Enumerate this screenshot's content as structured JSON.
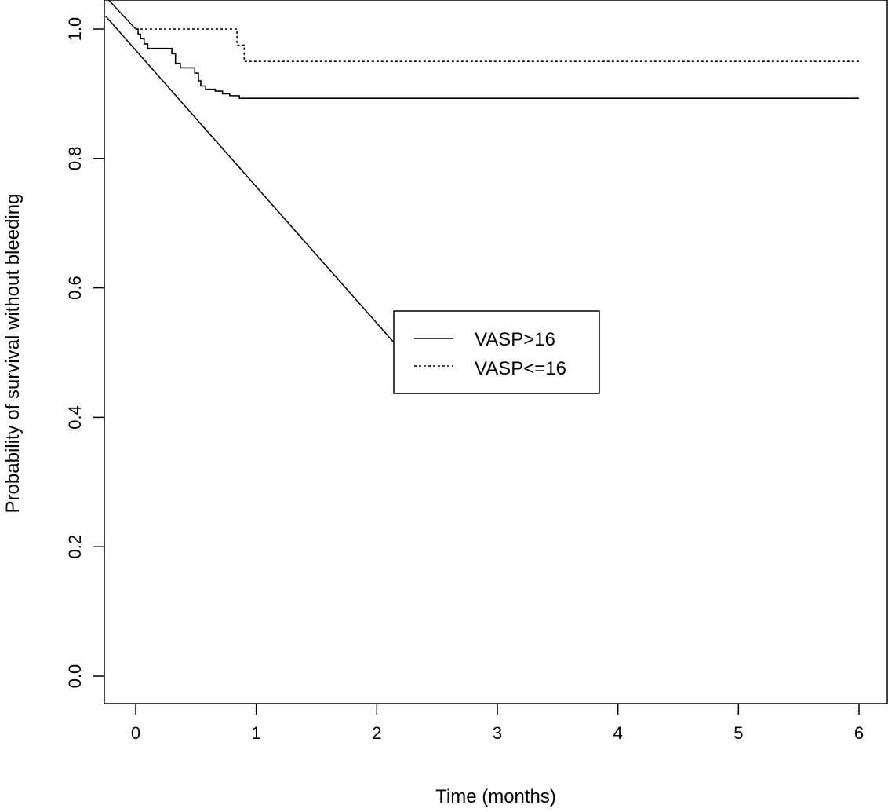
{
  "chart_data": {
    "type": "line",
    "title": "",
    "xlabel": "Time (months)",
    "ylabel": "Probability of survival without bleeding",
    "xlim": [
      -0.25,
      6.25
    ],
    "ylim": [
      -0.04,
      1.04
    ],
    "xticks": [
      "0",
      "1",
      "2",
      "3",
      "4",
      "5",
      "6"
    ],
    "yticks": [
      "0.0",
      "0.2",
      "0.4",
      "0.6",
      "0.8",
      "1.0"
    ],
    "grid": false,
    "legend_position": "center-right",
    "series": [
      {
        "name": "VASP>16",
        "line_style": "solid",
        "color": "#000000",
        "steps": [
          [
            0,
            1.0
          ],
          [
            0.02,
            0.992
          ],
          [
            0.04,
            0.985
          ],
          [
            0.07,
            0.977
          ],
          [
            0.1,
            0.97
          ],
          [
            0.3,
            0.962
          ],
          [
            0.33,
            0.947
          ],
          [
            0.37,
            0.94
          ],
          [
            0.49,
            0.932
          ],
          [
            0.52,
            0.92
          ],
          [
            0.54,
            0.912
          ],
          [
            0.58,
            0.907
          ],
          [
            0.66,
            0.904
          ],
          [
            0.72,
            0.9
          ],
          [
            0.78,
            0.897
          ],
          [
            0.86,
            0.893
          ],
          [
            6.0,
            0.893
          ]
        ]
      },
      {
        "name": "VASP<=16",
        "line_style": "dotted",
        "color": "#000000",
        "steps": [
          [
            0,
            1.0
          ],
          [
            0.84,
            0.975
          ],
          [
            0.9,
            0.95
          ],
          [
            6.0,
            0.95
          ]
        ]
      }
    ],
    "annotation_lines": [
      {
        "from": [
          -0.25,
          1.05
        ],
        "to": [
          0.0,
          1.0
        ],
        "style": "solid"
      },
      {
        "from": [
          -0.25,
          1.02
        ],
        "to": [
          2.32,
          0.478
        ],
        "style": "solid"
      }
    ]
  }
}
